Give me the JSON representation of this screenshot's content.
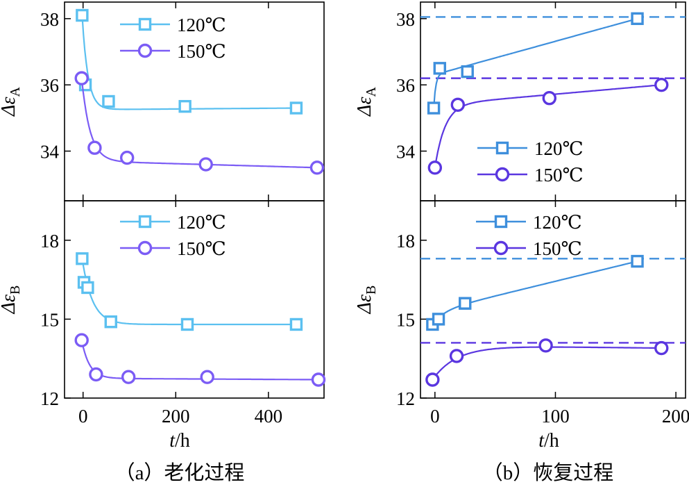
{
  "colors": {
    "c120a": "#5bc0f0",
    "c120b": "#3e8fdc",
    "c150": "#7b5cf5",
    "c150b": "#5a36e0",
    "ref120": "#3e8fdc",
    "ref150": "#5a36e0"
  },
  "chart_data": [
    {
      "id": "aging-A",
      "type": "scatter",
      "panel": "a",
      "row": "A",
      "ylabel": "Δε_A",
      "ylabel_main": "Δε",
      "ylabel_sub": "A",
      "xlim": [
        -40,
        520
      ],
      "ylim": [
        32.5,
        38.5
      ],
      "xticks": [
        0,
        200,
        400
      ],
      "yticks": [
        34,
        36,
        38
      ],
      "legend": "top-right",
      "series": [
        {
          "name": "120℃",
          "marker": "square",
          "color": "#5bc0f0",
          "x": [
            -2,
            5,
            55,
            220,
            460
          ],
          "y": [
            38.1,
            36.0,
            35.5,
            35.35,
            35.3
          ],
          "curve": {
            "a": 35.25,
            "b": 2.85,
            "k": 0.08
          }
        },
        {
          "name": "150℃",
          "marker": "circle",
          "color": "#7b5cf5",
          "x": [
            -3,
            25,
            95,
            265,
            505
          ],
          "y": [
            36.2,
            34.1,
            33.8,
            33.6,
            33.5
          ],
          "curve": {
            "a": 33.7,
            "b": 2.5,
            "k": 0.055,
            "c": -0.0004
          }
        }
      ]
    },
    {
      "id": "aging-B",
      "type": "scatter",
      "panel": "a",
      "row": "B",
      "ylabel": "Δε_B",
      "ylabel_main": "Δε",
      "ylabel_sub": "B",
      "xlim": [
        -40,
        520
      ],
      "ylim": [
        12,
        19.5
      ],
      "xticks": [
        0,
        200,
        400
      ],
      "yticks": [
        12,
        15,
        18
      ],
      "legend": "top-right",
      "series": [
        {
          "name": "120℃",
          "marker": "square",
          "color": "#5bc0f0",
          "x": [
            -2,
            2,
            10,
            60,
            225,
            460
          ],
          "y": [
            17.3,
            16.4,
            16.2,
            14.9,
            14.8,
            14.8
          ],
          "curve": {
            "a": 14.8,
            "b": 2.5,
            "k": 0.045
          }
        },
        {
          "name": "150℃",
          "marker": "circle",
          "color": "#7b5cf5",
          "x": [
            -3,
            28,
            98,
            268,
            508
          ],
          "y": [
            14.2,
            12.9,
            12.8,
            12.8,
            12.7
          ],
          "curve": {
            "a": 12.75,
            "b": 1.45,
            "k": 0.06,
            "c": -0.0001
          }
        }
      ]
    },
    {
      "id": "recovery-A",
      "type": "scatter",
      "panel": "b",
      "row": "A",
      "ylabel": "Δε_A",
      "ylabel_main": "Δε",
      "ylabel_sub": "A",
      "xlim": [
        -12,
        208
      ],
      "ylim": [
        32.5,
        38.5
      ],
      "xticks": [
        0,
        100,
        200
      ],
      "yticks": [
        34,
        36,
        38
      ],
      "legend": "bottom-right",
      "reference_lines": [
        {
          "series": "120℃",
          "y": 38.05,
          "color": "#3e8fdc"
        },
        {
          "series": "150℃",
          "y": 36.2,
          "color": "#5a36e0"
        }
      ],
      "series": [
        {
          "name": "120℃",
          "marker": "square",
          "color": "#3e8fdc",
          "x": [
            -1,
            4,
            27,
            168
          ],
          "y": [
            35.3,
            36.5,
            36.4,
            38.0
          ],
          "curve": {
            "a": 36.3,
            "b": -1.0,
            "k": 0.6,
            "c": 0.01
          }
        },
        {
          "name": "150℃",
          "marker": "circle",
          "color": "#5a36e0",
          "x": [
            0,
            19,
            95,
            188
          ],
          "y": [
            33.5,
            35.4,
            35.6,
            36.0
          ],
          "curve": {
            "a": 35.4,
            "b": -1.9,
            "k": 0.12,
            "c": 0.003
          }
        }
      ]
    },
    {
      "id": "recovery-B",
      "type": "scatter",
      "panel": "b",
      "row": "B",
      "ylabel": "Δε_B",
      "ylabel_main": "Δε",
      "ylabel_sub": "B",
      "xlim": [
        -12,
        208
      ],
      "ylim": [
        12,
        19.5
      ],
      "xticks": [
        0,
        100,
        200
      ],
      "yticks": [
        12,
        15,
        18
      ],
      "legend": "top-right",
      "reference_lines": [
        {
          "series": "120℃",
          "y": 17.3,
          "color": "#3e8fdc"
        },
        {
          "series": "150℃",
          "y": 14.1,
          "color": "#5a36e0"
        }
      ],
      "series": [
        {
          "name": "120℃",
          "marker": "square",
          "color": "#3e8fdc",
          "x": [
            -2,
            3,
            25,
            168
          ],
          "y": [
            14.8,
            15.0,
            15.6,
            17.2
          ],
          "curve": {
            "a": 15.3,
            "b": -0.5,
            "k": 0.1,
            "c": 0.011
          }
        },
        {
          "name": "150℃",
          "marker": "circle",
          "color": "#5a36e0",
          "x": [
            -2,
            18,
            92,
            188
          ],
          "y": [
            12.7,
            13.6,
            14.0,
            13.9
          ],
          "curve": {
            "a": 14.0,
            "b": -1.3,
            "k": 0.05,
            "c": 0.0
          }
        }
      ]
    }
  ],
  "xlabel_italic": "t",
  "xlabel_unit": "/h",
  "captions": {
    "a": "（a）老化过程",
    "b": "（b）恢复过程"
  }
}
